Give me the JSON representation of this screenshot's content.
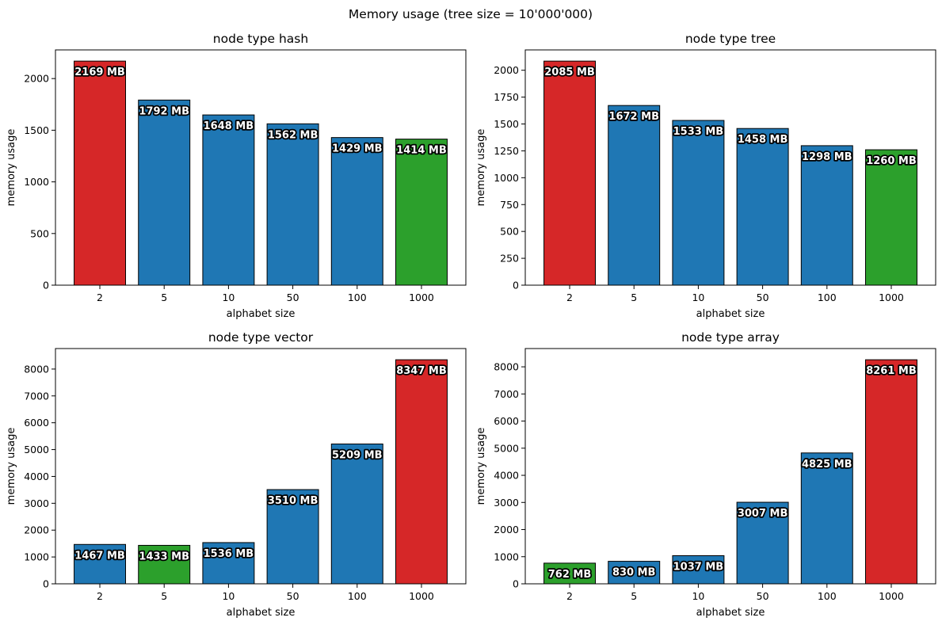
{
  "figure": {
    "suptitle": "Memory usage (tree size = 10'000'000)"
  },
  "colors": {
    "default": "#1f77b4",
    "max": "#d62728",
    "min": "#2ca02c"
  },
  "chart_data": [
    {
      "type": "bar",
      "title": "node type hash",
      "xlabel": "alphabet size",
      "ylabel": "memory usage",
      "categories": [
        "2",
        "5",
        "10",
        "50",
        "100",
        "1000"
      ],
      "values": [
        2169,
        1792,
        1648,
        1562,
        1429,
        1414
      ],
      "labels": [
        "2169 MB",
        "1792 MB",
        "1648 MB",
        "1562 MB",
        "1429 MB",
        "1414 MB"
      ],
      "bar_colors": [
        "#d62728",
        "#1f77b4",
        "#1f77b4",
        "#1f77b4",
        "#1f77b4",
        "#2ca02c"
      ],
      "ylim": [
        0,
        2277.45
      ],
      "yticks": [
        0,
        500,
        1000,
        1500,
        2000
      ],
      "grid": false
    },
    {
      "type": "bar",
      "title": "node type tree",
      "xlabel": "alphabet size",
      "ylabel": "memory usage",
      "categories": [
        "2",
        "5",
        "10",
        "50",
        "100",
        "1000"
      ],
      "values": [
        2085,
        1672,
        1533,
        1458,
        1298,
        1260
      ],
      "labels": [
        "2085 MB",
        "1672 MB",
        "1533 MB",
        "1458 MB",
        "1298 MB",
        "1260 MB"
      ],
      "bar_colors": [
        "#d62728",
        "#1f77b4",
        "#1f77b4",
        "#1f77b4",
        "#1f77b4",
        "#2ca02c"
      ],
      "ylim": [
        0,
        2189.25
      ],
      "yticks": [
        0,
        250,
        500,
        750,
        1000,
        1250,
        1500,
        1750,
        2000
      ],
      "grid": false
    },
    {
      "type": "bar",
      "title": "node type vector",
      "xlabel": "alphabet size",
      "ylabel": "memory usage",
      "categories": [
        "2",
        "5",
        "10",
        "50",
        "100",
        "1000"
      ],
      "values": [
        1467,
        1433,
        1536,
        3510,
        5209,
        8347
      ],
      "labels": [
        "1467 MB",
        "1433 MB",
        "1536 MB",
        "3510 MB",
        "5209 MB",
        "8347 MB"
      ],
      "bar_colors": [
        "#1f77b4",
        "#2ca02c",
        "#1f77b4",
        "#1f77b4",
        "#1f77b4",
        "#d62728"
      ],
      "ylim": [
        0,
        8764.35
      ],
      "yticks": [
        0,
        1000,
        2000,
        3000,
        4000,
        5000,
        6000,
        7000,
        8000
      ],
      "grid": false
    },
    {
      "type": "bar",
      "title": "node type array",
      "xlabel": "alphabet size",
      "ylabel": "memory usage",
      "categories": [
        "2",
        "5",
        "10",
        "50",
        "100",
        "1000"
      ],
      "values": [
        762,
        830,
        1037,
        3007,
        4825,
        8261
      ],
      "labels": [
        "762 MB",
        "830 MB",
        "1037 MB",
        "3007 MB",
        "4825 MB",
        "8261 MB"
      ],
      "bar_colors": [
        "#2ca02c",
        "#1f77b4",
        "#1f77b4",
        "#1f77b4",
        "#1f77b4",
        "#d62728"
      ],
      "ylim": [
        0,
        8674.05
      ],
      "yticks": [
        0,
        1000,
        2000,
        3000,
        4000,
        5000,
        6000,
        7000,
        8000
      ],
      "grid": false
    }
  ]
}
